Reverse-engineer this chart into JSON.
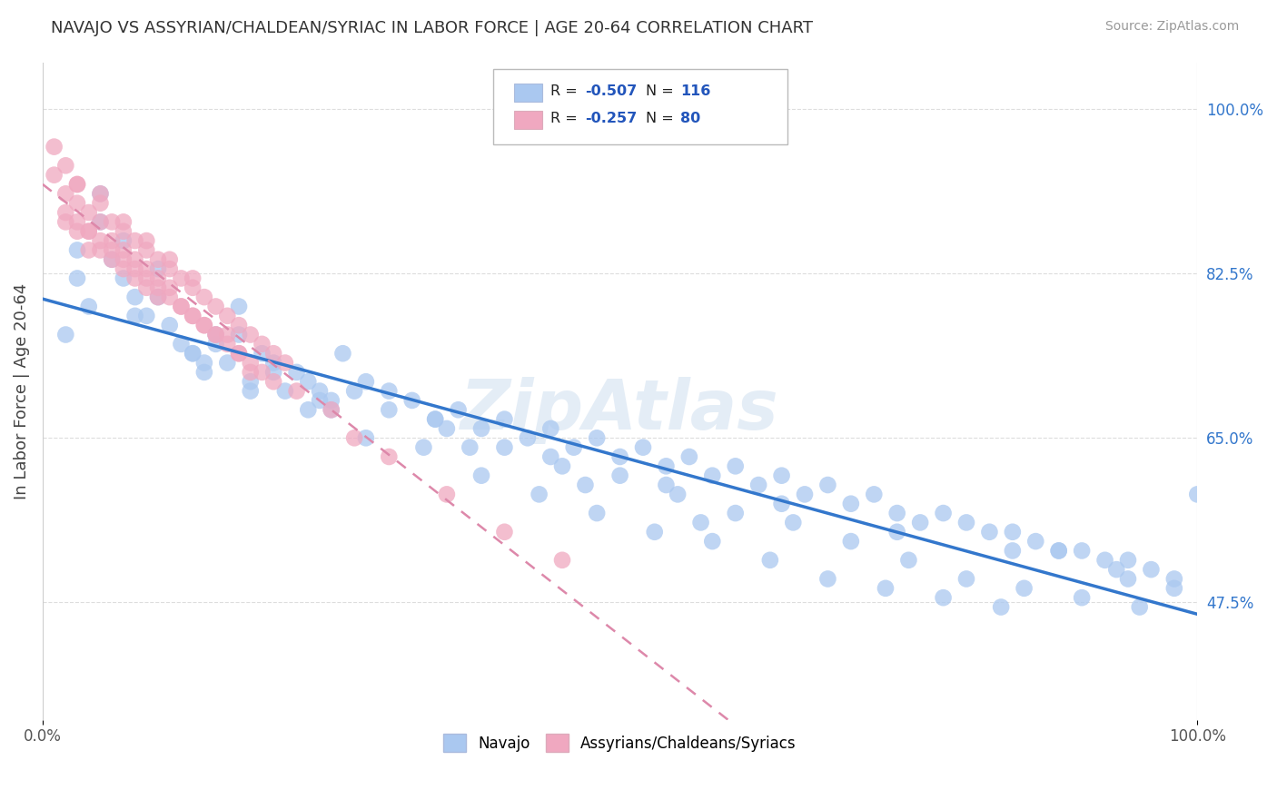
{
  "title": "NAVAJO VS ASSYRIAN/CHALDEAN/SYRIAC IN LABOR FORCE | AGE 20-64 CORRELATION CHART",
  "source": "Source: ZipAtlas.com",
  "ylabel": "In Labor Force | Age 20-64",
  "xlim": [
    0.0,
    1.0
  ],
  "ylim": [
    0.35,
    1.05
  ],
  "yticks": [
    0.475,
    0.65,
    0.825,
    1.0
  ],
  "ytick_labels": [
    "47.5%",
    "65.0%",
    "82.5%",
    "100.0%"
  ],
  "xtick_labels": [
    "0.0%",
    "100.0%"
  ],
  "xticks": [
    0.0,
    1.0
  ],
  "navajo_R": -0.507,
  "navajo_N": 116,
  "assyrian_R": -0.257,
  "assyrian_N": 80,
  "navajo_color": "#aac8f0",
  "assyrian_color": "#f0a8c0",
  "navajo_line_color": "#3377cc",
  "assyrian_line_color": "#dd88aa",
  "watermark": "ZipAtlas",
  "background_color": "#ffffff",
  "grid_color": "#dddddd",
  "navajo_x": [
    0.02,
    0.03,
    0.04,
    0.05,
    0.06,
    0.07,
    0.08,
    0.09,
    0.1,
    0.11,
    0.12,
    0.13,
    0.14,
    0.15,
    0.16,
    0.17,
    0.18,
    0.19,
    0.2,
    0.21,
    0.22,
    0.23,
    0.24,
    0.25,
    0.26,
    0.28,
    0.3,
    0.32,
    0.34,
    0.36,
    0.38,
    0.4,
    0.42,
    0.44,
    0.46,
    0.48,
    0.5,
    0.52,
    0.54,
    0.56,
    0.58,
    0.6,
    0.62,
    0.64,
    0.66,
    0.68,
    0.7,
    0.72,
    0.74,
    0.76,
    0.78,
    0.8,
    0.82,
    0.84,
    0.86,
    0.88,
    0.9,
    0.92,
    0.94,
    0.96,
    0.98,
    1.0,
    0.05,
    0.1,
    0.15,
    0.2,
    0.25,
    0.3,
    0.35,
    0.4,
    0.45,
    0.5,
    0.55,
    0.6,
    0.65,
    0.7,
    0.75,
    0.8,
    0.85,
    0.9,
    0.95,
    0.03,
    0.08,
    0.13,
    0.18,
    0.23,
    0.28,
    0.33,
    0.38,
    0.43,
    0.48,
    0.53,
    0.58,
    0.63,
    0.68,
    0.73,
    0.78,
    0.83,
    0.88,
    0.93,
    0.98,
    0.14,
    0.24,
    0.34,
    0.44,
    0.54,
    0.64,
    0.74,
    0.84,
    0.94,
    0.07,
    0.17,
    0.27,
    0.37,
    0.47,
    0.57
  ],
  "navajo_y": [
    0.76,
    0.82,
    0.79,
    0.91,
    0.84,
    0.86,
    0.8,
    0.78,
    0.83,
    0.77,
    0.75,
    0.74,
    0.72,
    0.76,
    0.73,
    0.79,
    0.71,
    0.74,
    0.73,
    0.7,
    0.72,
    0.71,
    0.69,
    0.68,
    0.74,
    0.71,
    0.7,
    0.69,
    0.67,
    0.68,
    0.66,
    0.67,
    0.65,
    0.66,
    0.64,
    0.65,
    0.63,
    0.64,
    0.62,
    0.63,
    0.61,
    0.62,
    0.6,
    0.61,
    0.59,
    0.6,
    0.58,
    0.59,
    0.57,
    0.56,
    0.57,
    0.56,
    0.55,
    0.55,
    0.54,
    0.53,
    0.53,
    0.52,
    0.52,
    0.51,
    0.5,
    0.59,
    0.88,
    0.8,
    0.75,
    0.72,
    0.69,
    0.68,
    0.66,
    0.64,
    0.62,
    0.61,
    0.59,
    0.57,
    0.56,
    0.54,
    0.52,
    0.5,
    0.49,
    0.48,
    0.47,
    0.85,
    0.78,
    0.74,
    0.7,
    0.68,
    0.65,
    0.64,
    0.61,
    0.59,
    0.57,
    0.55,
    0.54,
    0.52,
    0.5,
    0.49,
    0.48,
    0.47,
    0.53,
    0.51,
    0.49,
    0.73,
    0.7,
    0.67,
    0.63,
    0.6,
    0.58,
    0.55,
    0.53,
    0.5,
    0.82,
    0.76,
    0.7,
    0.64,
    0.6,
    0.56
  ],
  "assyrian_x": [
    0.01,
    0.01,
    0.02,
    0.02,
    0.02,
    0.03,
    0.03,
    0.03,
    0.04,
    0.04,
    0.04,
    0.05,
    0.05,
    0.05,
    0.06,
    0.06,
    0.06,
    0.07,
    0.07,
    0.07,
    0.08,
    0.08,
    0.08,
    0.09,
    0.09,
    0.09,
    0.1,
    0.1,
    0.1,
    0.11,
    0.11,
    0.12,
    0.12,
    0.13,
    0.13,
    0.14,
    0.14,
    0.15,
    0.15,
    0.16,
    0.16,
    0.17,
    0.17,
    0.18,
    0.18,
    0.19,
    0.19,
    0.2,
    0.2,
    0.21,
    0.02,
    0.03,
    0.04,
    0.05,
    0.06,
    0.07,
    0.08,
    0.09,
    0.1,
    0.11,
    0.12,
    0.13,
    0.14,
    0.15,
    0.03,
    0.05,
    0.07,
    0.09,
    0.11,
    0.13,
    0.25,
    0.3,
    0.35,
    0.4,
    0.45,
    0.16,
    0.17,
    0.18,
    0.22,
    0.27
  ],
  "assyrian_y": [
    0.93,
    0.96,
    0.91,
    0.94,
    0.88,
    0.92,
    0.9,
    0.87,
    0.89,
    0.87,
    0.85,
    0.91,
    0.88,
    0.85,
    0.88,
    0.86,
    0.84,
    0.87,
    0.85,
    0.83,
    0.86,
    0.84,
    0.82,
    0.85,
    0.83,
    0.81,
    0.84,
    0.82,
    0.8,
    0.83,
    0.81,
    0.82,
    0.79,
    0.81,
    0.78,
    0.8,
    0.77,
    0.79,
    0.76,
    0.78,
    0.75,
    0.77,
    0.74,
    0.76,
    0.73,
    0.75,
    0.72,
    0.74,
    0.71,
    0.73,
    0.89,
    0.88,
    0.87,
    0.86,
    0.85,
    0.84,
    0.83,
    0.82,
    0.81,
    0.8,
    0.79,
    0.78,
    0.77,
    0.76,
    0.92,
    0.9,
    0.88,
    0.86,
    0.84,
    0.82,
    0.68,
    0.63,
    0.59,
    0.55,
    0.52,
    0.76,
    0.74,
    0.72,
    0.7,
    0.65
  ]
}
